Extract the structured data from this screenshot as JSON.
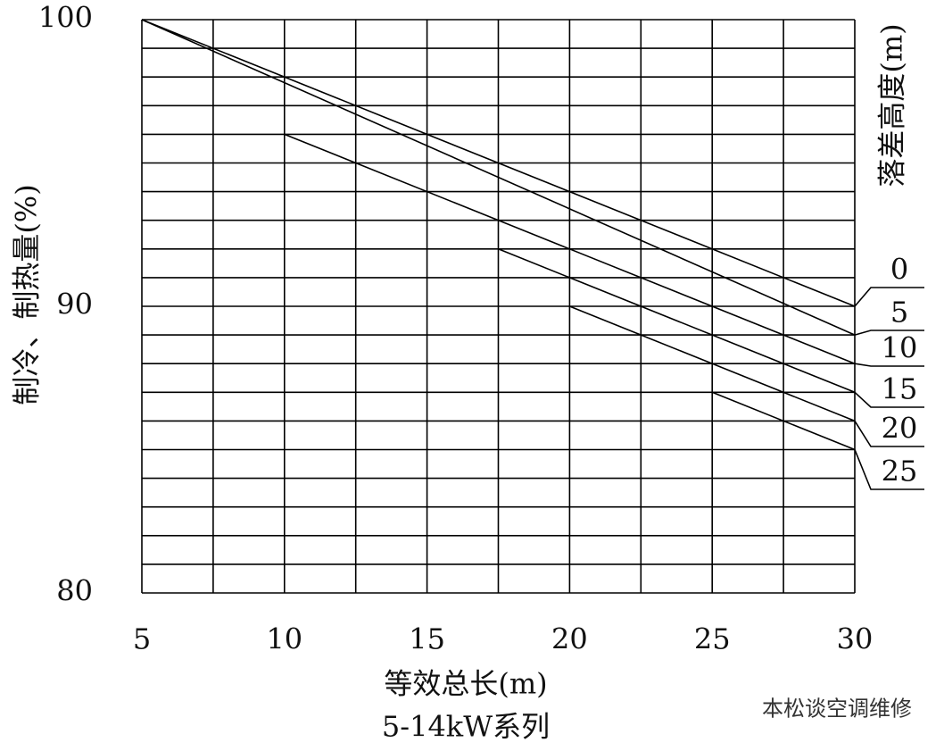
{
  "chart_data": {
    "type": "line",
    "title": "等效总长(m)",
    "subtitle": "5-14kW系列",
    "y_label": "制冷、制热量(%)",
    "legend_title": "落差高度(m)",
    "watermark": "本松谈空调维修",
    "xlim": [
      5,
      30
    ],
    "xticks": [
      5,
      10,
      15,
      20,
      25,
      30
    ],
    "ylim": [
      80,
      100
    ],
    "yticks": [
      80,
      90,
      100
    ],
    "grid": true,
    "grid_x_step": 2.5,
    "grid_y_step": 1,
    "color": "#000000",
    "series": [
      {
        "name": "0",
        "x": [
          5,
          30
        ],
        "values": [
          100,
          90
        ]
      },
      {
        "name": "5",
        "x": [
          5,
          30
        ],
        "values": [
          100,
          89
        ]
      },
      {
        "name": "10",
        "x": [
          10,
          30
        ],
        "values": [
          96,
          88
        ]
      },
      {
        "name": "15",
        "x": [
          17.5,
          30
        ],
        "values": [
          92,
          87
        ]
      },
      {
        "name": "20",
        "x": [
          20,
          30
        ],
        "values": [
          90,
          86
        ]
      },
      {
        "name": "25",
        "x": [
          25,
          30
        ],
        "values": [
          87,
          85
        ]
      }
    ]
  }
}
